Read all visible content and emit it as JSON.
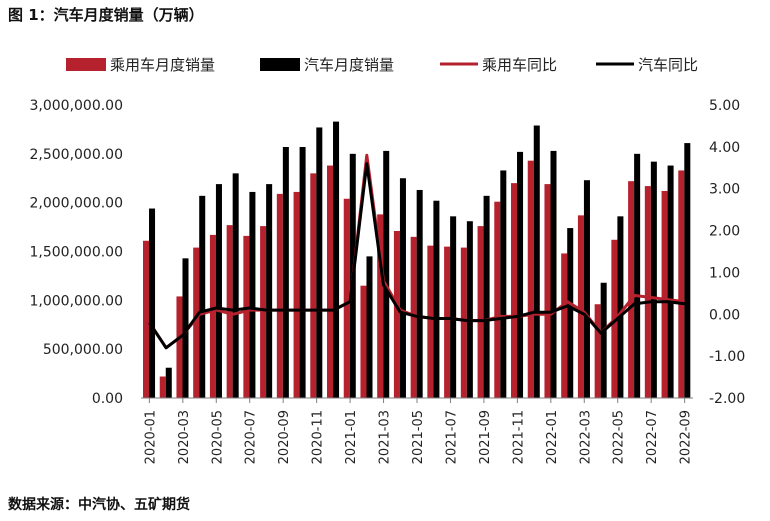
{
  "figure_title": "图 1：汽车月度销量（万辆）",
  "source_note": "数据来源：中汽协、五矿期货",
  "colors": {
    "passenger": "#b5222e",
    "auto": "#000000",
    "passenger_yoy": "#b5222e",
    "auto_yoy": "#000000"
  },
  "chart_data": {
    "type": "bar",
    "combo": "bar+line",
    "categories": [
      "2020-01",
      "2020-02",
      "2020-03",
      "2020-04",
      "2020-05",
      "2020-06",
      "2020-07",
      "2020-08",
      "2020-09",
      "2020-10",
      "2020-11",
      "2020-12",
      "2021-01",
      "2021-02",
      "2021-03",
      "2021-04",
      "2021-05",
      "2021-06",
      "2021-07",
      "2021-08",
      "2021-09",
      "2021-10",
      "2021-11",
      "2021-12",
      "2022-01",
      "2022-02",
      "2022-03",
      "2022-04",
      "2022-05",
      "2022-06",
      "2022-07",
      "2022-08",
      "2022-09"
    ],
    "x_tick_labels": [
      "2020-01",
      "2020-03",
      "2020-05",
      "2020-07",
      "2020-09",
      "2020-11",
      "2021-01",
      "2021-03",
      "2021-05",
      "2021-07",
      "2021-09",
      "2021-11",
      "2022-01",
      "2022-03",
      "2022-05",
      "2022-07",
      "2022-09"
    ],
    "series": [
      {
        "name": "乘用车月度销量",
        "kind": "bar",
        "axis": "left",
        "values": [
          1610000,
          220000,
          1040000,
          1540000,
          1670000,
          1770000,
          1660000,
          1760000,
          2090000,
          2110000,
          2300000,
          2380000,
          2040000,
          1150000,
          1880000,
          1710000,
          1650000,
          1560000,
          1550000,
          1540000,
          1760000,
          2010000,
          2200000,
          2430000,
          2190000,
          1480000,
          1870000,
          960000,
          1620000,
          2220000,
          2170000,
          2120000,
          2330000
        ]
      },
      {
        "name": "汽车月度销量",
        "kind": "bar",
        "axis": "left",
        "values": [
          1940000,
          310000,
          1430000,
          2070000,
          2190000,
          2300000,
          2110000,
          2190000,
          2570000,
          2570000,
          2770000,
          2830000,
          2500000,
          1450000,
          2530000,
          2250000,
          2130000,
          2020000,
          1860000,
          1810000,
          2070000,
          2330000,
          2520000,
          2790000,
          2530000,
          1740000,
          2230000,
          1180000,
          1860000,
          2500000,
          2420000,
          2380000,
          2610000
        ]
      },
      {
        "name": "乘用车同比",
        "kind": "line",
        "axis": "right",
        "values": [
          -0.2,
          -0.8,
          -0.5,
          0.0,
          0.1,
          0.0,
          0.1,
          0.1,
          0.1,
          0.1,
          0.1,
          0.1,
          0.3,
          3.8,
          0.8,
          0.1,
          -0.05,
          -0.1,
          -0.1,
          -0.15,
          -0.15,
          -0.05,
          -0.05,
          0.0,
          0.0,
          0.3,
          0.05,
          -0.45,
          -0.05,
          0.45,
          0.4,
          0.35,
          0.3
        ]
      },
      {
        "name": "汽车同比",
        "kind": "line",
        "axis": "right",
        "values": [
          -0.2,
          -0.8,
          -0.5,
          0.05,
          0.15,
          0.1,
          0.15,
          0.1,
          0.1,
          0.1,
          0.1,
          0.1,
          0.3,
          3.6,
          0.7,
          0.05,
          -0.05,
          -0.1,
          -0.1,
          -0.15,
          -0.15,
          -0.1,
          -0.05,
          0.05,
          0.05,
          0.2,
          0.0,
          -0.45,
          -0.1,
          0.25,
          0.3,
          0.3,
          0.25
        ]
      }
    ],
    "y_left": {
      "ylim": [
        0,
        3000000
      ],
      "ticks": [
        0,
        500000,
        1000000,
        1500000,
        2000000,
        2500000,
        3000000
      ],
      "tick_labels": [
        "0.00",
        "500,000.00",
        "1,000,000.00",
        "1,500,000.00",
        "2,000,000.00",
        "2,500,000.00",
        "3,000,000.00"
      ]
    },
    "y_right": {
      "ylim": [
        -2,
        5
      ],
      "ticks": [
        -2,
        -1,
        0,
        1,
        2,
        3,
        4,
        5
      ],
      "tick_labels": [
        "-2.00",
        "-1.00",
        "0.00",
        "1.00",
        "2.00",
        "3.00",
        "4.00",
        "5.00"
      ]
    },
    "grid": false,
    "legend_position": "top"
  }
}
